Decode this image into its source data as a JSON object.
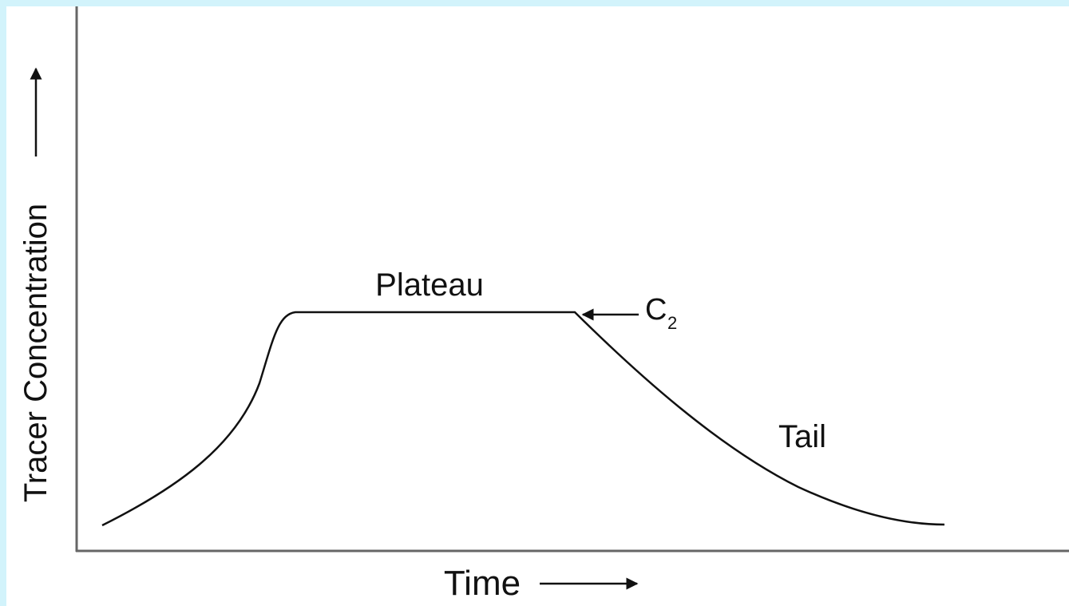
{
  "axes": {
    "y_label": "Tracer Concentration",
    "x_label": "Time"
  },
  "annotations": {
    "plateau": "Plateau",
    "c2": {
      "text": "C",
      "subscript": "2"
    },
    "tail": "Tail"
  }
}
